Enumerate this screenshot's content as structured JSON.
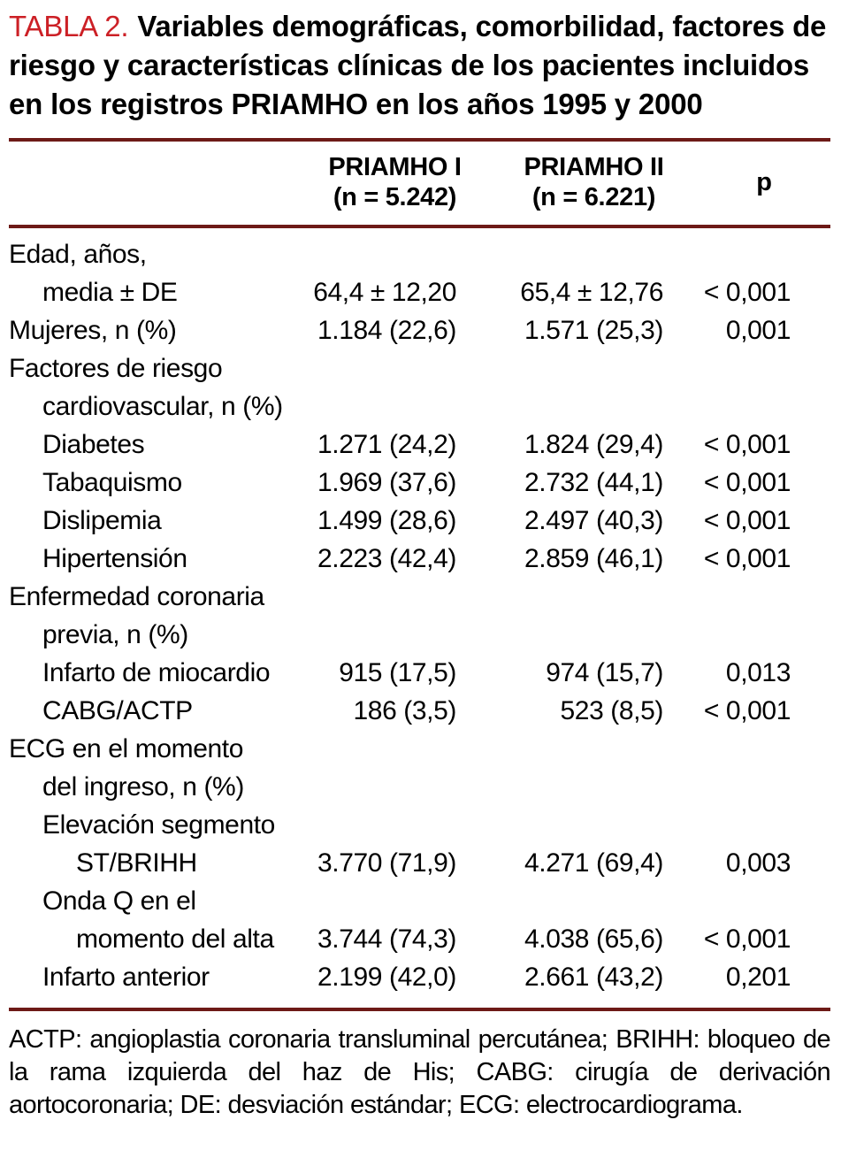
{
  "colors": {
    "accent_red": "#cc2026",
    "rule_maroon": "#6d1a17",
    "text": "#000000",
    "background": "#ffffff"
  },
  "title": {
    "label": "TABLA 2.",
    "text": "Variables demográficas, comorbilidad, factores de riesgo y características clínicas de los pacientes incluidos en los registros PRIAMHO en los años 1995 y 2000"
  },
  "table": {
    "columns": [
      {
        "name": "",
        "sub": ""
      },
      {
        "name": "PRIAMHO I",
        "sub": "(n = 5.242)"
      },
      {
        "name": "PRIAMHO II",
        "sub": "(n = 6.221)"
      },
      {
        "name": "p",
        "sub": ""
      }
    ],
    "rows": [
      {
        "label": "Edad, años,",
        "indent": 0,
        "priamho1": "",
        "priamho2": "",
        "p": ""
      },
      {
        "label": "media ± DE",
        "indent": 1,
        "priamho1": "64,4 ± 12,20",
        "priamho2": "65,4 ± 12,76",
        "p": "< 0,001"
      },
      {
        "label": "Mujeres, n (%)",
        "indent": 0,
        "priamho1": "1.184 (22,6)",
        "priamho2": "1.571 (25,3)",
        "p": "0,001"
      },
      {
        "label": "Factores de riesgo",
        "indent": 0,
        "priamho1": "",
        "priamho2": "",
        "p": ""
      },
      {
        "label": "cardiovascular, n (%)",
        "indent": 1,
        "priamho1": "",
        "priamho2": "",
        "p": ""
      },
      {
        "label": "Diabetes",
        "indent": 1,
        "priamho1": "1.271 (24,2)",
        "priamho2": "1.824 (29,4)",
        "p": "< 0,001"
      },
      {
        "label": "Tabaquismo",
        "indent": 1,
        "priamho1": "1.969 (37,6)",
        "priamho2": "2.732 (44,1)",
        "p": "< 0,001"
      },
      {
        "label": "Dislipemia",
        "indent": 1,
        "priamho1": "1.499 (28,6)",
        "priamho2": "2.497 (40,3)",
        "p": "< 0,001"
      },
      {
        "label": "Hipertensión",
        "indent": 1,
        "priamho1": "2.223 (42,4)",
        "priamho2": "2.859 (46,1)",
        "p": "< 0,001"
      },
      {
        "label": "Enfermedad coronaria",
        "indent": 0,
        "priamho1": "",
        "priamho2": "",
        "p": ""
      },
      {
        "label": "previa, n (%)",
        "indent": 1,
        "priamho1": "",
        "priamho2": "",
        "p": ""
      },
      {
        "label": "Infarto de miocardio",
        "indent": 1,
        "priamho1": "915 (17,5)",
        "priamho2": "974 (15,7)",
        "p": "0,013"
      },
      {
        "label": "CABG/ACTP",
        "indent": 1,
        "priamho1": "186 (3,5)",
        "priamho2": "523 (8,5)",
        "p": "< 0,001"
      },
      {
        "label": "ECG en el momento",
        "indent": 0,
        "priamho1": "",
        "priamho2": "",
        "p": ""
      },
      {
        "label": "del ingreso, n (%)",
        "indent": 1,
        "priamho1": "",
        "priamho2": "",
        "p": ""
      },
      {
        "label": "Elevación segmento",
        "indent": 1,
        "priamho1": "",
        "priamho2": "",
        "p": ""
      },
      {
        "label": "ST/BRIHH",
        "indent": 2,
        "priamho1": "3.770 (71,9)",
        "priamho2": "4.271 (69,4)",
        "p": "0,003"
      },
      {
        "label": "Onda Q en el",
        "indent": 1,
        "priamho1": "",
        "priamho2": "",
        "p": ""
      },
      {
        "label": "momento del alta",
        "indent": 2,
        "priamho1": "3.744 (74,3)",
        "priamho2": "4.038 (65,6)",
        "p": "< 0,001"
      },
      {
        "label": "Infarto anterior",
        "indent": 1,
        "priamho1": "2.199 (42,0)",
        "priamho2": "2.661 (43,2)",
        "p": "0,201"
      }
    ]
  },
  "footnote": "ACTP: angioplastia coronaria transluminal percutánea; BRIHH: bloqueo de la rama izquierda del haz de His; CABG: cirugía de derivación aortocoronaria; DE: desviación estándar; ECG: electrocardiograma."
}
